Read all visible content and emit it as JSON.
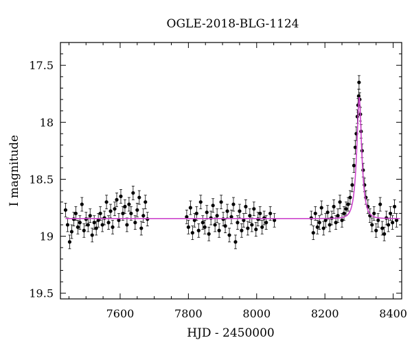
{
  "chart_data": {
    "type": "scatter",
    "title": "OGLE-2018-BLG-1124",
    "xlabel": "HJD - 2450000",
    "ylabel": "I magnitude",
    "xlim": [
      7425,
      8425
    ],
    "ylim": [
      19.55,
      17.3
    ],
    "y_inverted": true,
    "x_ticks": [
      7600,
      7800,
      8000,
      8200,
      8400
    ],
    "y_ticks": [
      17.5,
      18,
      18.5,
      19,
      19.5
    ],
    "x_tick_labels": [
      "7600",
      "7800",
      "8000",
      "8200",
      "8400"
    ],
    "y_tick_labels": [
      "17.5",
      "18",
      "18.5",
      "19",
      "19.5"
    ],
    "grid": false,
    "legend": "none",
    "colors": {
      "data": "#000000",
      "model": "#cc44cc"
    },
    "series": [
      {
        "type": "scatter",
        "error_bars": true,
        "typical_error": 0.06,
        "points": [
          [
            7440,
            18.77
          ],
          [
            7446,
            18.9
          ],
          [
            7452,
            19.05
          ],
          [
            7458,
            18.96
          ],
          [
            7464,
            18.85
          ],
          [
            7470,
            18.8
          ],
          [
            7476,
            18.92
          ],
          [
            7482,
            18.88
          ],
          [
            7488,
            18.72
          ],
          [
            7494,
            18.95
          ],
          [
            7500,
            18.85
          ],
          [
            7506,
            18.9
          ],
          [
            7512,
            18.82
          ],
          [
            7518,
            18.99
          ],
          [
            7524,
            18.88
          ],
          [
            7530,
            18.93
          ],
          [
            7536,
            18.86
          ],
          [
            7542,
            18.8
          ],
          [
            7548,
            18.9
          ],
          [
            7554,
            18.84
          ],
          [
            7560,
            18.7
          ],
          [
            7566,
            18.88
          ],
          [
            7572,
            18.78
          ],
          [
            7578,
            18.92
          ],
          [
            7584,
            18.76
          ],
          [
            7590,
            18.68
          ],
          [
            7596,
            18.86
          ],
          [
            7602,
            18.65
          ],
          [
            7608,
            18.8
          ],
          [
            7614,
            18.74
          ],
          [
            7620,
            18.9
          ],
          [
            7626,
            18.72
          ],
          [
            7632,
            18.8
          ],
          [
            7638,
            18.62
          ],
          [
            7644,
            18.88
          ],
          [
            7650,
            18.77
          ],
          [
            7656,
            18.66
          ],
          [
            7662,
            18.93
          ],
          [
            7668,
            18.82
          ],
          [
            7674,
            18.7
          ],
          [
            7680,
            18.85
          ],
          [
            7795,
            18.83
          ],
          [
            7800,
            18.92
          ],
          [
            7806,
            18.75
          ],
          [
            7812,
            18.97
          ],
          [
            7818,
            18.86
          ],
          [
            7824,
            18.8
          ],
          [
            7830,
            18.95
          ],
          [
            7836,
            18.7
          ],
          [
            7842,
            18.88
          ],
          [
            7848,
            18.92
          ],
          [
            7854,
            18.79
          ],
          [
            7860,
            18.98
          ],
          [
            7866,
            18.84
          ],
          [
            7872,
            18.73
          ],
          [
            7878,
            18.9
          ],
          [
            7884,
            18.82
          ],
          [
            7890,
            18.95
          ],
          [
            7896,
            18.7
          ],
          [
            7902,
            18.85
          ],
          [
            7908,
            18.91
          ],
          [
            7914,
            18.78
          ],
          [
            7920,
            18.99
          ],
          [
            7926,
            18.83
          ],
          [
            7932,
            18.72
          ],
          [
            7938,
            19.05
          ],
          [
            7944,
            18.88
          ],
          [
            7950,
            18.78
          ],
          [
            7956,
            18.95
          ],
          [
            7962,
            18.86
          ],
          [
            7968,
            18.74
          ],
          [
            7974,
            18.93
          ],
          [
            7980,
            18.82
          ],
          [
            7986,
            18.9
          ],
          [
            7992,
            18.76
          ],
          [
            7998,
            18.94
          ],
          [
            8004,
            18.85
          ],
          [
            8010,
            18.8
          ],
          [
            8016,
            18.92
          ],
          [
            8022,
            18.84
          ],
          [
            8028,
            18.88
          ],
          [
            8040,
            18.8
          ],
          [
            8052,
            18.86
          ],
          [
            8160,
            18.84
          ],
          [
            8166,
            18.97
          ],
          [
            8172,
            18.8
          ],
          [
            8178,
            18.92
          ],
          [
            8184,
            18.88
          ],
          [
            8190,
            18.75
          ],
          [
            8196,
            18.93
          ],
          [
            8202,
            18.86
          ],
          [
            8208,
            18.79
          ],
          [
            8214,
            18.9
          ],
          [
            8220,
            18.84
          ],
          [
            8226,
            18.74
          ],
          [
            8232,
            18.88
          ],
          [
            8238,
            18.82
          ],
          [
            8244,
            18.7
          ],
          [
            8250,
            18.86
          ],
          [
            8256,
            18.8
          ],
          [
            8262,
            18.76
          ],
          [
            8268,
            18.72
          ],
          [
            8274,
            18.66
          ],
          [
            8280,
            18.55
          ],
          [
            8285,
            18.38
          ],
          [
            8289,
            18.22
          ],
          [
            8292,
            18.1
          ],
          [
            8295,
            17.95
          ],
          [
            8297,
            17.85
          ],
          [
            8299,
            17.77
          ],
          [
            8300,
            17.65
          ],
          [
            8302,
            17.8
          ],
          [
            8304,
            17.93
          ],
          [
            8306,
            18.08
          ],
          [
            8309,
            18.25
          ],
          [
            8312,
            18.42
          ],
          [
            8316,
            18.55
          ],
          [
            8320,
            18.66
          ],
          [
            8326,
            18.74
          ],
          [
            8332,
            18.82
          ],
          [
            8338,
            18.9
          ],
          [
            8344,
            18.8
          ],
          [
            8350,
            18.95
          ],
          [
            8356,
            18.86
          ],
          [
            8362,
            18.72
          ],
          [
            8368,
            18.93
          ],
          [
            8374,
            18.98
          ],
          [
            8380,
            18.84
          ],
          [
            8386,
            18.9
          ],
          [
            8392,
            18.8
          ],
          [
            8398,
            18.88
          ],
          [
            8404,
            18.74
          ],
          [
            8410,
            18.86
          ]
        ]
      },
      {
        "type": "line",
        "model": "PSPL fit",
        "baseline": 18.845,
        "peak_mag": 17.78,
        "t0": 8300.5,
        "tE": 14,
        "u0": 0.38
      }
    ]
  }
}
